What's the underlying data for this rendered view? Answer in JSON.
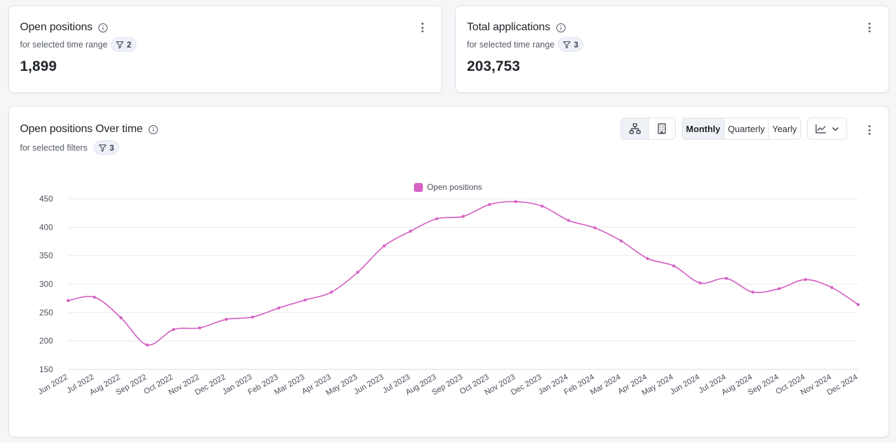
{
  "kpis": [
    {
      "title": "Open positions",
      "subtitle": "for selected time range",
      "filter_count": "2",
      "value": "1,899"
    },
    {
      "title": "Total applications",
      "subtitle": "for selected time range",
      "filter_count": "3",
      "value": "203,753"
    }
  ],
  "chart_card": {
    "title": "Open positions Over time",
    "subtitle": "for selected filters",
    "filter_count": "3",
    "period_options": [
      "Monthly",
      "Quarterly",
      "Yearly"
    ],
    "selected_period": "Monthly",
    "view_icons": [
      "hierarchy-icon",
      "building-icon"
    ],
    "chart_type_icon": "line-chart-icon"
  },
  "colors": {
    "series": "#d562c4",
    "accent": "#1f2328"
  },
  "chart_data": {
    "type": "line",
    "title": "",
    "xlabel": "",
    "ylabel": "",
    "legend": {
      "position": "top-center",
      "entries": [
        "Open positions"
      ]
    },
    "ylim": [
      150,
      450
    ],
    "yticks": [
      150,
      200,
      250,
      300,
      350,
      400,
      450
    ],
    "grid": true,
    "categories": [
      "Jun 2022",
      "Jul 2022",
      "Aug 2022",
      "Sep 2022",
      "Oct 2022",
      "Nov 2022",
      "Dec 2022",
      "Jan 2023",
      "Feb 2023",
      "Mar 2023",
      "Apr 2023",
      "May 2023",
      "Jun 2023",
      "Jul 2023",
      "Aug 2023",
      "Sep 2023",
      "Oct 2023",
      "Nov 2023",
      "Dec 2023",
      "Jan 2024",
      "Feb 2024",
      "Mar 2024",
      "Apr 2024",
      "May 2024",
      "Jun 2024",
      "Jul 2024",
      "Aug 2024",
      "Sep 2024",
      "Oct 2024",
      "Nov 2024",
      "Dec 2024"
    ],
    "series": [
      {
        "name": "Open positions",
        "values": [
          271,
          277,
          241,
          193,
          220,
          223,
          238,
          242,
          258,
          272,
          286,
          321,
          367,
          393,
          415,
          419,
          440,
          445,
          437,
          412,
          399,
          376,
          345,
          332,
          302,
          310,
          286,
          292,
          308,
          294,
          264
        ]
      }
    ]
  }
}
